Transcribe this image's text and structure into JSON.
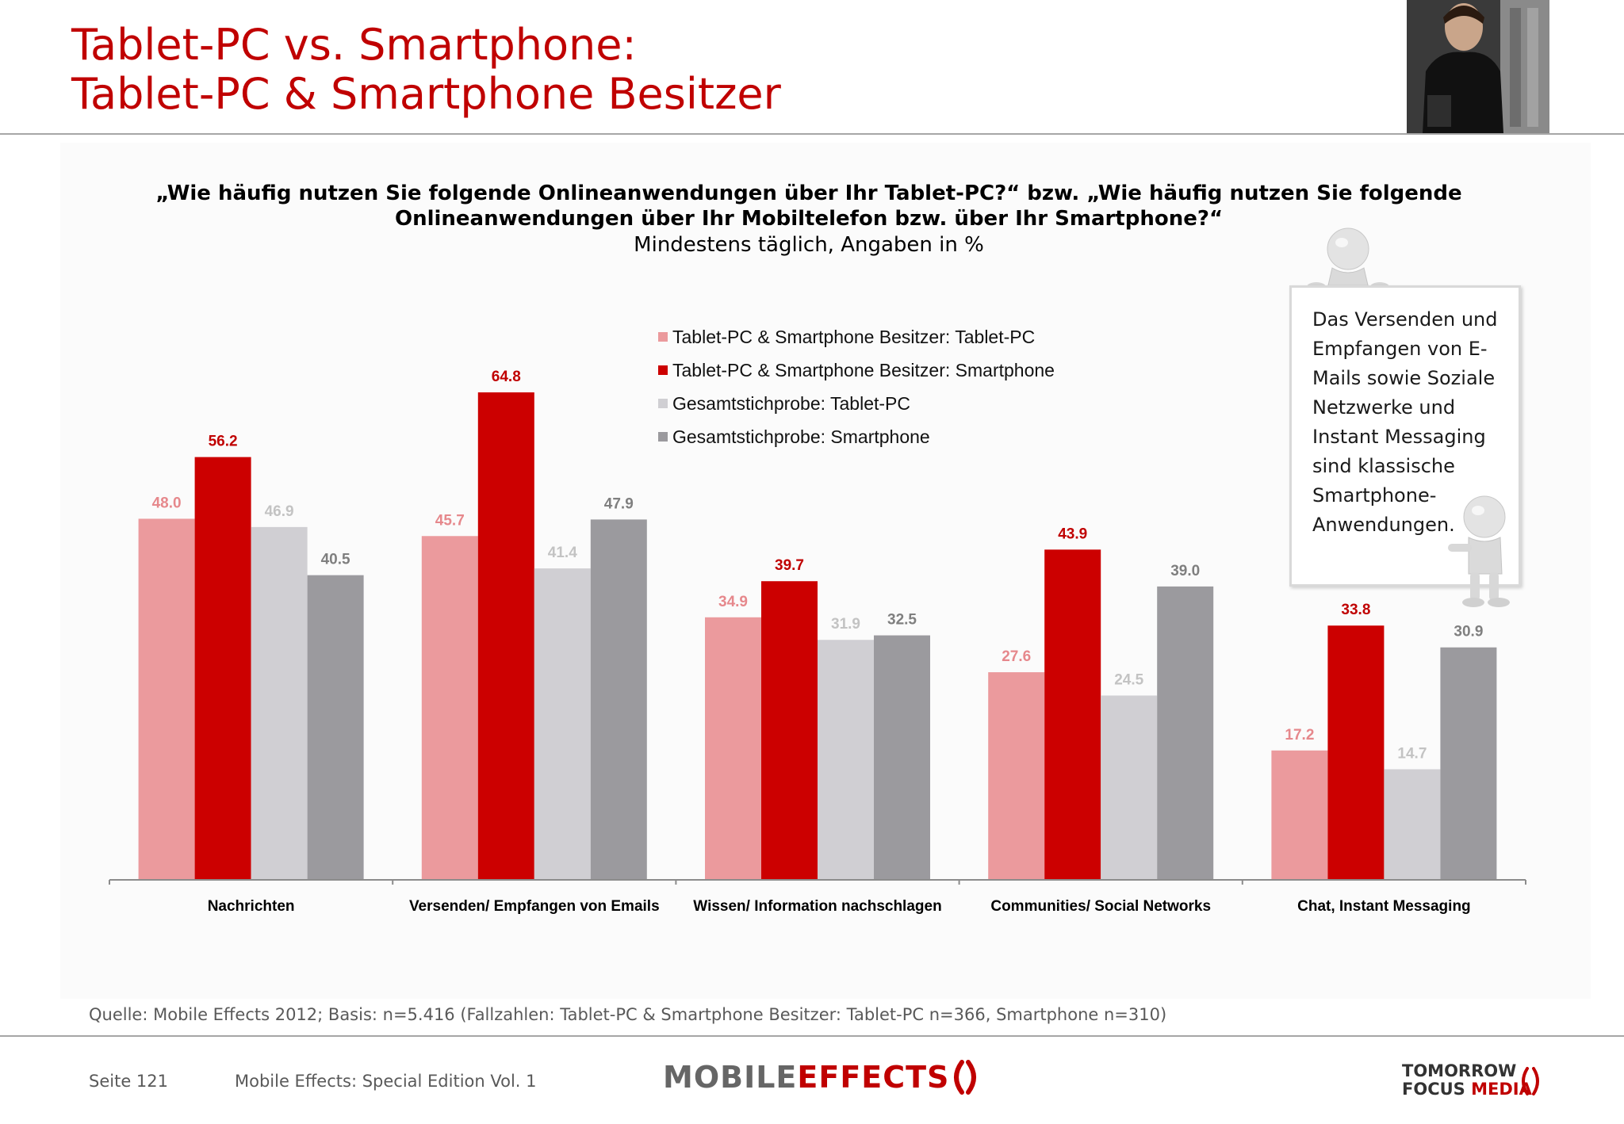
{
  "header": {
    "title_line1": "Tablet-PC vs. Smartphone:",
    "title_line2": "Tablet-PC & Smartphone Besitzer"
  },
  "question": {
    "line1": "„Wie häufig nutzen Sie folgende Onlineanwendungen über Ihr Tablet-PC?“ bzw. „Wie häufig nutzen Sie folgende",
    "line2": "Onlineanwendungen über Ihr Mobiltelefon bzw. über Ihr Smartphone?“",
    "subtitle": "Mindestens täglich, Angaben in %"
  },
  "callout": {
    "text": "Das Versenden und Empfangen von E-Mails sowie Soziale Netzwerke und Instant Messaging sind klassische Smartphone-Anwendungen."
  },
  "chart_data": {
    "type": "bar",
    "categories": [
      "Nachrichten",
      "Versenden/ Empfangen von Emails",
      "Wissen/ Information nachschlagen",
      "Communities/ Social Networks",
      "Chat, Instant Messaging"
    ],
    "series": [
      {
        "name": "Tablet-PC & Smartphone Besitzer: Tablet-PC",
        "color": "#eb9a9d",
        "label_color": "#e6888c",
        "values": [
          48.0,
          45.7,
          34.9,
          27.6,
          17.2
        ]
      },
      {
        "name": "Tablet-PC & Smartphone Besitzer: Smartphone",
        "color": "#cc0000",
        "label_color": "#c00000",
        "values": [
          56.2,
          64.8,
          39.7,
          43.9,
          33.8
        ]
      },
      {
        "name": "Gesamtstichprobe: Tablet-PC",
        "color": "#d0cfd3",
        "label_color": "#c3c3c3",
        "values": [
          46.9,
          41.4,
          31.9,
          24.5,
          14.7
        ]
      },
      {
        "name": "Gesamtstichprobe: Smartphone",
        "color": "#9b9a9e",
        "label_color": "#7f7f7f",
        "values": [
          40.5,
          47.9,
          32.5,
          39.0,
          30.9
        ]
      }
    ],
    "ylim": [
      0,
      64.8
    ],
    "grid": false,
    "legend": "top-center"
  },
  "footer": {
    "source": "Quelle: Mobile Effects 2012; Basis: n=5.416 (Fallzahlen: Tablet-PC & Smartphone Besitzer: Tablet-PC n=366, Smartphone n=310)",
    "page": "Seite 121",
    "edition": "Mobile Effects: Special Edition Vol. 1",
    "logo_mobile": "MOBILE",
    "logo_effects": "EFFECTS",
    "logo_tfm_line1": "TOMORROW",
    "logo_tfm_focus": "FOCUS",
    "logo_tfm_media": "MEDIA"
  }
}
